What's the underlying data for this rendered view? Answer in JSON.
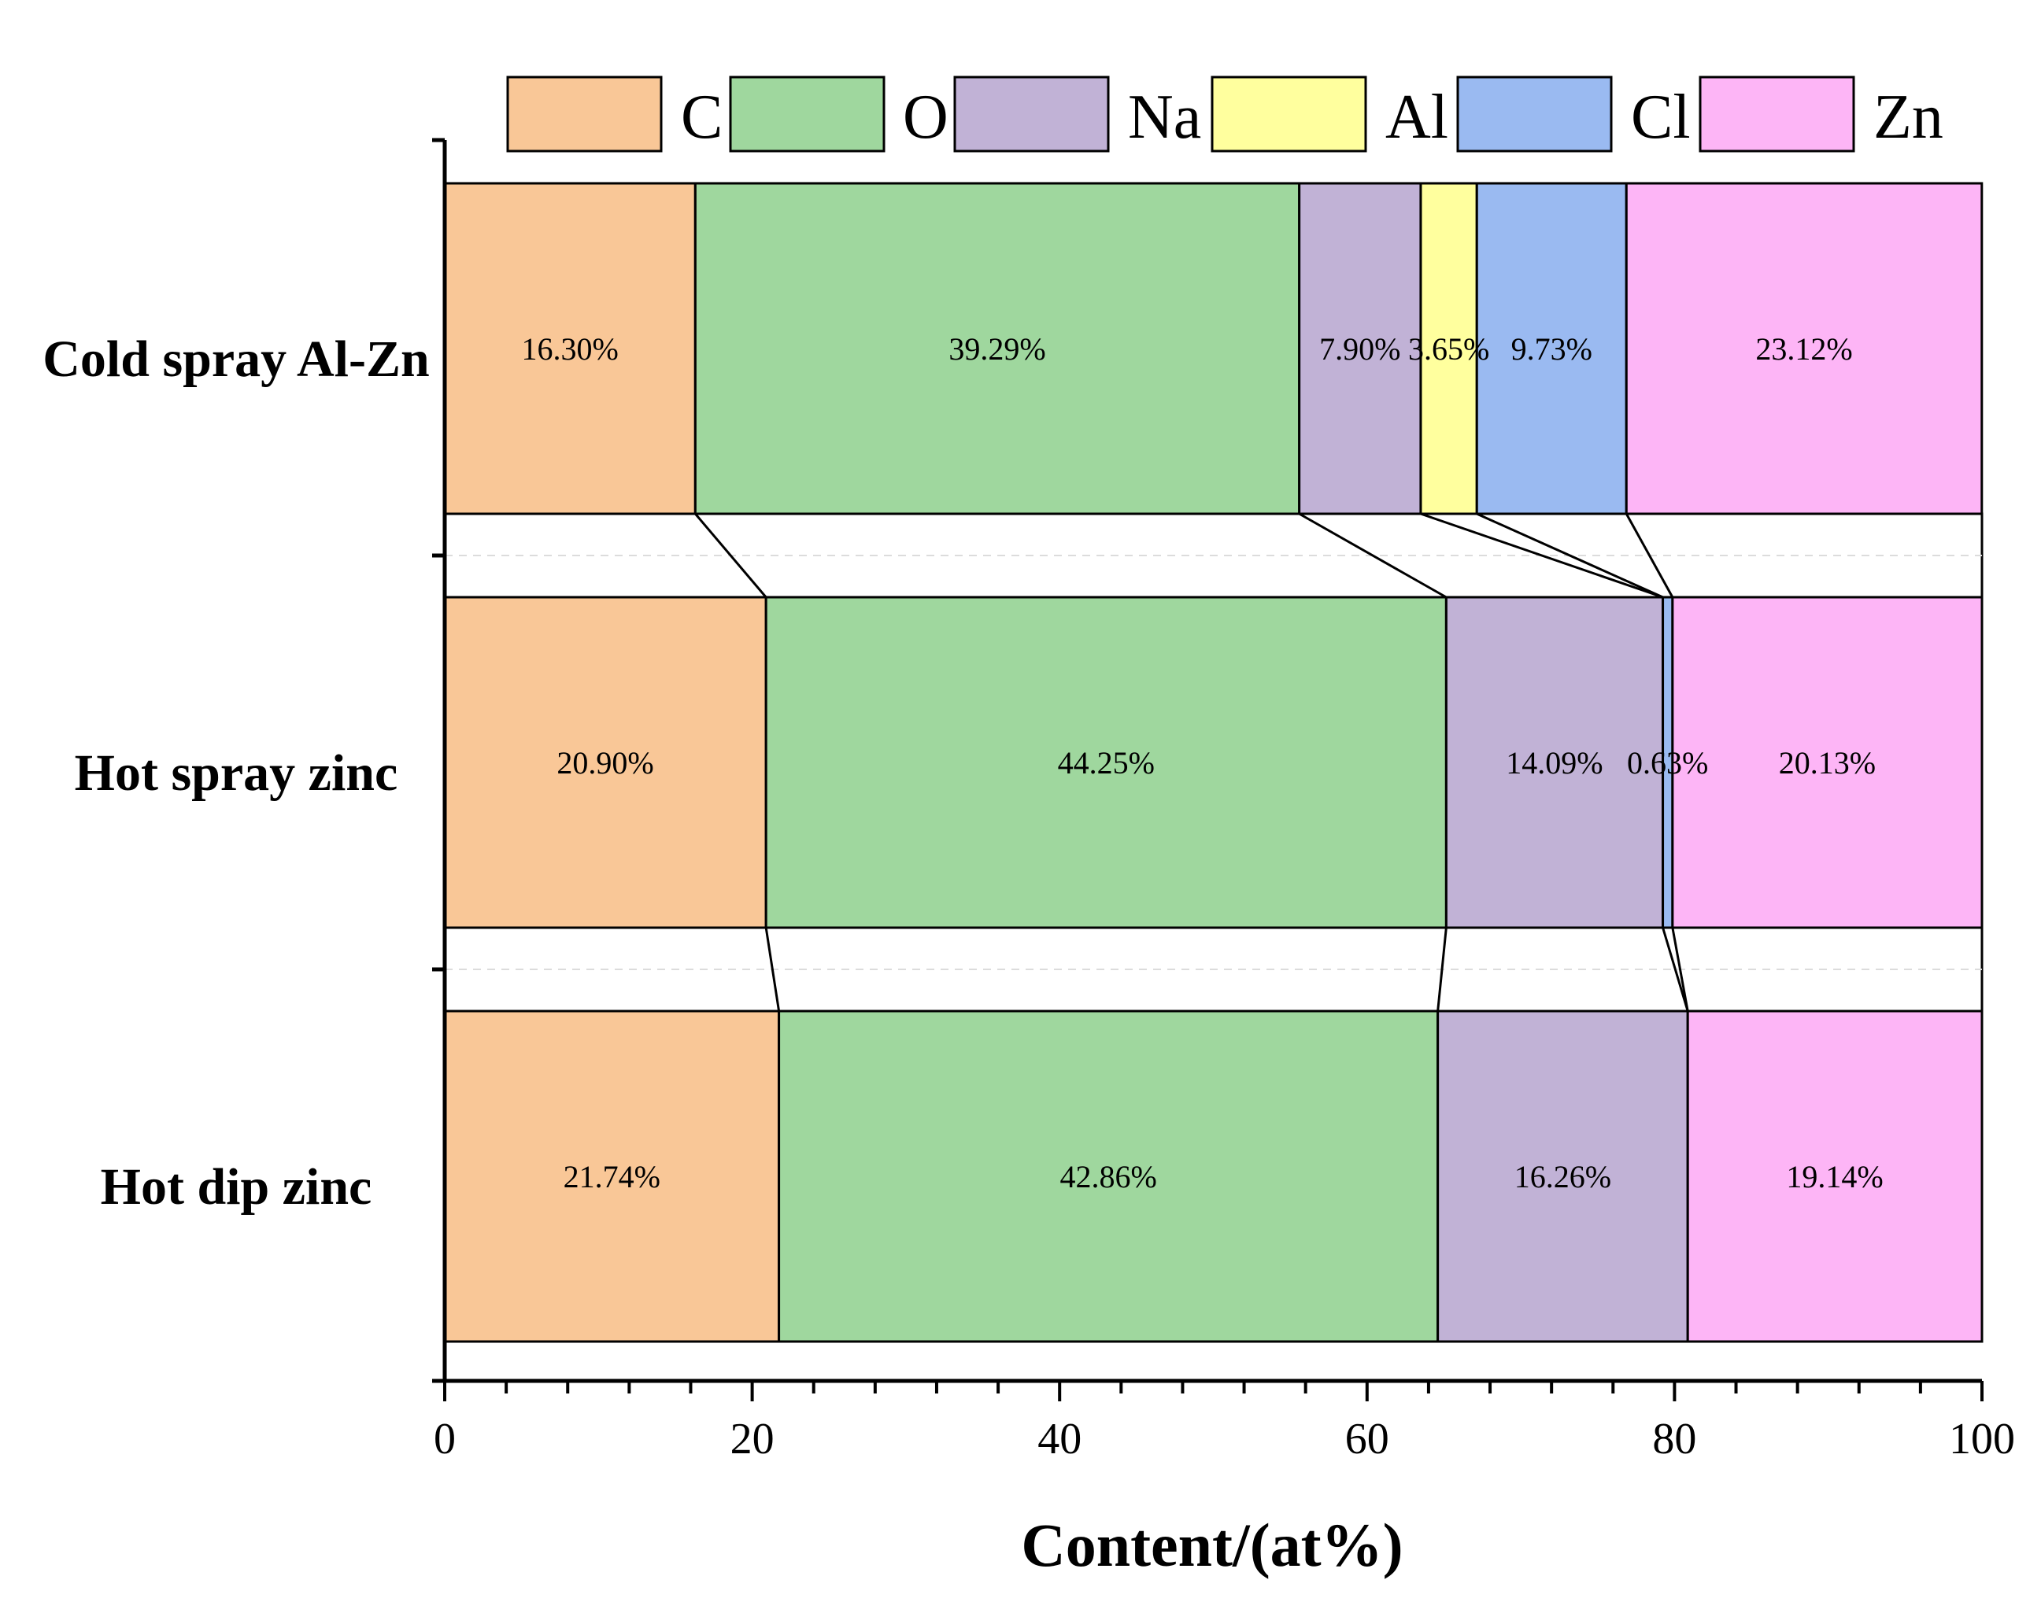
{
  "chart_data": {
    "type": "bar",
    "orientation": "horizontal",
    "stacked": true,
    "percent": true,
    "categories": [
      "Cold spray Al-Zn",
      "Hot spray zinc",
      "Hot dip zinc"
    ],
    "series": [
      {
        "name": "C",
        "color": "#f9c797",
        "values": [
          16.3,
          20.9,
          21.74
        ],
        "labels": [
          "16.30%",
          "20.90%",
          "21.74%"
        ]
      },
      {
        "name": "O",
        "color": "#9fd79e",
        "values": [
          39.29,
          44.25,
          42.86
        ],
        "labels": [
          "39.29%",
          "44.25%",
          "42.86%"
        ]
      },
      {
        "name": "Na",
        "color": "#c1b2d6",
        "values": [
          7.9,
          14.09,
          16.26
        ],
        "labels": [
          "7.90%",
          "14.09%",
          "16.26%"
        ]
      },
      {
        "name": "Al",
        "color": "#ffff9e",
        "values": [
          3.65,
          0,
          0
        ],
        "labels": [
          "3.65%",
          "",
          ""
        ]
      },
      {
        "name": "Cl",
        "color": "#9abaf1",
        "values": [
          9.73,
          0.63,
          0
        ],
        "labels": [
          "9.73%",
          "0.63%",
          ""
        ]
      },
      {
        "name": "Zn",
        "color": "#fdb5f6",
        "values": [
          23.12,
          20.13,
          19.14
        ],
        "labels": [
          "23.12%",
          "20.13%",
          "19.14%"
        ]
      }
    ],
    "xlabel": "Content/(at%)",
    "ylabel": "",
    "xlim": [
      0,
      100
    ],
    "xticks": [
      0,
      20,
      40,
      60,
      80,
      100
    ],
    "xtick_labels": [
      "0",
      "20",
      "40",
      "60",
      "80",
      "100"
    ],
    "legend_position": "top",
    "connector_lines": true
  }
}
